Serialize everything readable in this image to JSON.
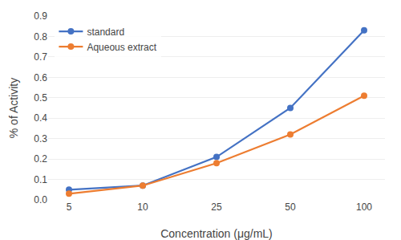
{
  "chart_data": {
    "type": "line",
    "xlabel": "Concentration (μg/mL)",
    "ylabel": "% of Activity",
    "categories": [
      "5",
      "10",
      "25",
      "50",
      "100"
    ],
    "series": [
      {
        "name": "standard",
        "color": "#4472C4",
        "marker": "circle",
        "values": [
          0.05,
          0.07,
          0.21,
          0.45,
          0.83
        ]
      },
      {
        "name": "Aqueous extract",
        "color": "#ED7D31",
        "marker": "circle",
        "values": [
          0.03,
          0.07,
          0.18,
          0.32,
          0.51
        ]
      }
    ],
    "ylim": [
      0,
      0.9
    ],
    "yticks": [
      {
        "value": 0,
        "label": "0.0"
      },
      0.1,
      0.2,
      0.3,
      0.4,
      0.5,
      0.6,
      0.7,
      0.8,
      0.9
    ],
    "grid": "y",
    "legend": "upper left"
  }
}
